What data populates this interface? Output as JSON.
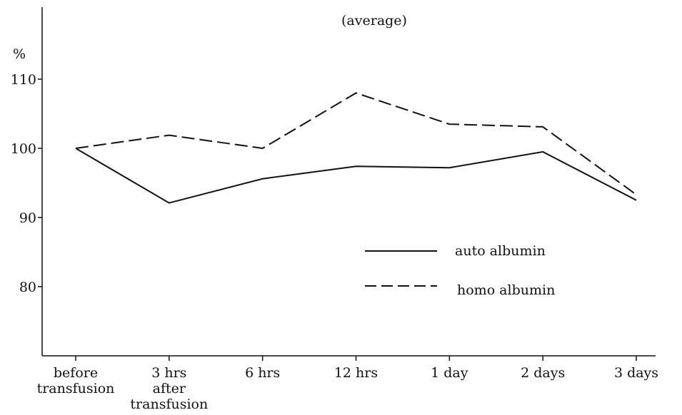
{
  "chart_data": {
    "type": "line",
    "title": "(average)",
    "ylabel": "%",
    "xlabel": "",
    "ylim": [
      70,
      120
    ],
    "yticks": [
      80,
      90,
      100,
      110
    ],
    "categories": [
      [
        "before",
        "transfusion"
      ],
      [
        "3 hrs",
        "after",
        "transfusion"
      ],
      [
        "6 hrs"
      ],
      [
        "12 hrs"
      ],
      [
        "1 day"
      ],
      [
        "2 days"
      ],
      [
        "3 days"
      ]
    ],
    "series": [
      {
        "name": "auto albumin",
        "style": "solid",
        "values": [
          100,
          92.1,
          95.6,
          97.4,
          97.2,
          99.5,
          92.5
        ]
      },
      {
        "name": "homo albumin",
        "style": "dashed",
        "values": [
          100,
          101.9,
          100,
          108,
          103.5,
          103.1,
          93.3
        ]
      }
    ],
    "legend": "center-right",
    "grid": false,
    "colors": {
      "line": "#111111",
      "background": "#ffffff"
    }
  }
}
